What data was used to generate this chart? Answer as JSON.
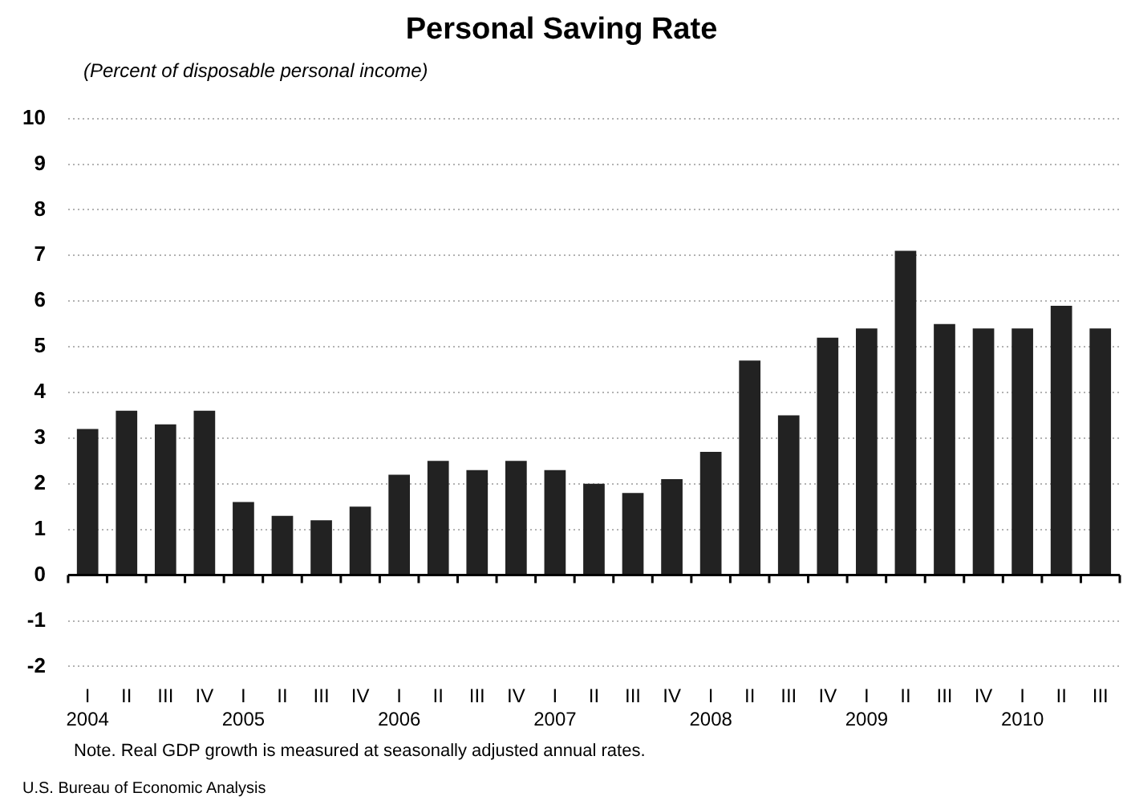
{
  "chart_data": {
    "type": "bar",
    "title": "Personal Saving Rate",
    "subtitle": "(Percent of disposable personal income)",
    "categories": [
      "I\n2004",
      "II",
      "III",
      "IV",
      "I\n2005",
      "II",
      "III",
      "IV",
      "I\n2006",
      "II",
      "III",
      "IV",
      "I\n2007",
      "II",
      "III",
      "IV",
      "I\n2008",
      "II",
      "III",
      "IV",
      "I\n2009",
      "II",
      "III",
      "IV",
      "I\n2010",
      "II",
      "III"
    ],
    "values": [
      3.2,
      3.6,
      3.3,
      3.6,
      1.6,
      1.3,
      1.2,
      1.5,
      2.2,
      2.5,
      2.3,
      2.5,
      2.3,
      2.0,
      1.8,
      2.1,
      2.7,
      4.7,
      3.5,
      5.2,
      5.4,
      7.1,
      5.5,
      5.4,
      5.4,
      5.9,
      5.4
    ],
    "color": "#222222",
    "ylim": [
      -2,
      10
    ],
    "yticks": [
      -2,
      -1,
      0,
      1,
      2,
      3,
      4,
      5,
      6,
      7,
      8,
      9,
      10
    ],
    "grid": "y",
    "legend": false,
    "annotations": [
      "Note.  Real GDP growth is measured at seasonally adjusted annual rates.",
      "U.S. Bureau of Economic Analysis"
    ]
  }
}
